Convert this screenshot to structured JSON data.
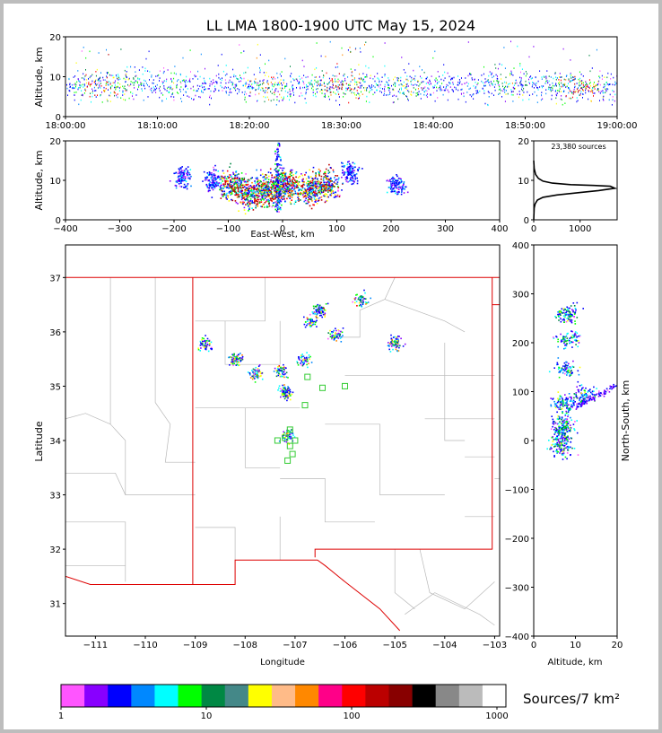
{
  "title": "LL LMA 1800-1900 UTC May 15, 2024",
  "time_panel": {
    "ylabel": "Altitude, km",
    "yticks": [
      "0",
      "10",
      "20"
    ],
    "xticks": [
      "18:00:00",
      "18:10:00",
      "18:20:00",
      "18:30:00",
      "18:40:00",
      "18:50:00",
      "19:00:00"
    ]
  },
  "ew_panel": {
    "ylabel": "Altitude, km",
    "xlabel": "East-West, km",
    "yticks": [
      "0",
      "10",
      "20"
    ],
    "xticks": [
      "−400",
      "−300",
      "−200",
      "−100",
      "0",
      "100",
      "200",
      "300",
      "400"
    ]
  },
  "hist_panel": {
    "annotation": "23,380 sources",
    "yticks": [
      "0",
      "10",
      "20"
    ],
    "xticks": [
      "0",
      "1000"
    ]
  },
  "map_panel": {
    "ylabel": "Latitude",
    "xlabel": "Longitude",
    "yticks": [
      "31",
      "32",
      "33",
      "34",
      "35",
      "36",
      "37"
    ],
    "xticks": [
      "−111",
      "−110",
      "−109",
      "−108",
      "−107",
      "−106",
      "−105",
      "−104",
      "−103"
    ]
  },
  "ns_panel": {
    "ylabel": "North-South, km",
    "xlabel": "Altitude, km",
    "yticks": [
      "400",
      "300",
      "200",
      "100",
      "0",
      "−100",
      "−200",
      "−300",
      "−400"
    ],
    "xticks": [
      "0",
      "10",
      "20"
    ]
  },
  "colorbar": {
    "label": "Sources/7 km²",
    "ticks": [
      "1",
      "10",
      "100",
      "1000"
    ],
    "colors": [
      "#ff55ff",
      "#8800ff",
      "#0000ff",
      "#0088ff",
      "#00ffff",
      "#00ff00",
      "#008844",
      "#448888",
      "#ffff00",
      "#ffbb88",
      "#ff8800",
      "#ff0088",
      "#ff0000",
      "#bb0000",
      "#880000",
      "#000000",
      "#888888",
      "#bbbbbb",
      "#ffffff"
    ]
  },
  "chart_data": [
    {
      "type": "scatter",
      "name": "time-height",
      "xlabel": "",
      "ylabel": "Altitude, km",
      "xlim": [
        "18:00:00",
        "19:00:00"
      ],
      "ylim": [
        0,
        20
      ],
      "altitude_range_km": [
        3,
        13
      ],
      "dense_altitude_km": [
        5,
        11
      ]
    },
    {
      "type": "scatter",
      "name": "east-west vs altitude",
      "xlabel": "East-West, km",
      "ylabel": "Altitude, km",
      "xlim": [
        -400,
        400
      ],
      "ylim": [
        0,
        20
      ],
      "clusters": [
        {
          "x": -185,
          "y": 11
        },
        {
          "x": -130,
          "y": 10
        },
        {
          "x": -95,
          "y": 9
        },
        {
          "x": -65,
          "y": 7
        },
        {
          "x": -35,
          "y": 8
        },
        {
          "x": -10,
          "y": 8
        },
        {
          "x": 10,
          "y": 9
        },
        {
          "x": 50,
          "y": 8
        },
        {
          "x": 80,
          "y": 9
        },
        {
          "x": 125,
          "y": 12
        },
        {
          "x": 210,
          "y": 9
        }
      ]
    },
    {
      "type": "line",
      "name": "altitude histogram",
      "annotation": "23,380 sources",
      "xlim": [
        0,
        1800
      ],
      "ylim": [
        0,
        20
      ],
      "points": [
        [
          0,
          0
        ],
        [
          10,
          3
        ],
        [
          30,
          4
        ],
        [
          80,
          5
        ],
        [
          200,
          5.7
        ],
        [
          500,
          6.3
        ],
        [
          1000,
          6.9
        ],
        [
          1400,
          7.4
        ],
        [
          1750,
          8
        ],
        [
          1650,
          8.5
        ],
        [
          1300,
          8.7
        ],
        [
          800,
          8.9
        ],
        [
          400,
          9.3
        ],
        [
          200,
          9.8
        ],
        [
          100,
          10.5
        ],
        [
          40,
          11.5
        ],
        [
          10,
          13
        ],
        [
          0,
          15
        ]
      ]
    },
    {
      "type": "scatter",
      "name": "plan view",
      "xlabel": "Longitude",
      "ylabel": "Latitude",
      "xlim": [
        -111.6,
        -102.9
      ],
      "ylim": [
        30.4,
        37.6
      ],
      "clusters": [
        {
          "lon": -108.8,
          "lat": 35.8
        },
        {
          "lon": -108.2,
          "lat": 35.5
        },
        {
          "lon": -107.8,
          "lat": 35.25
        },
        {
          "lon": -107.3,
          "lat": 35.3
        },
        {
          "lon": -107.2,
          "lat": 34.9
        },
        {
          "lon": -107.15,
          "lat": 34.1
        },
        {
          "lon": -106.85,
          "lat": 35.5
        },
        {
          "lon": -106.7,
          "lat": 36.2
        },
        {
          "lon": -106.5,
          "lat": 36.4
        },
        {
          "lon": -106.2,
          "lat": 35.95
        },
        {
          "lon": -105.7,
          "lat": 36.6
        },
        {
          "lon": -105.0,
          "lat": 35.8
        }
      ],
      "stations": [
        {
          "lon": -106.75,
          "lat": 35.17
        },
        {
          "lon": -106.45,
          "lat": 34.97
        },
        {
          "lon": -106.0,
          "lat": 35.0
        },
        {
          "lon": -106.8,
          "lat": 34.65
        },
        {
          "lon": -107.1,
          "lat": 34.2
        },
        {
          "lon": -107.2,
          "lat": 34.05
        },
        {
          "lon": -107.35,
          "lat": 34.0
        },
        {
          "lon": -107.0,
          "lat": 34.0
        },
        {
          "lon": -107.1,
          "lat": 33.9
        },
        {
          "lon": -107.05,
          "lat": 33.75
        },
        {
          "lon": -107.15,
          "lat": 33.63
        }
      ]
    },
    {
      "type": "scatter",
      "name": "north-south vs altitude",
      "xlabel": "Altitude, km",
      "ylabel": "North-South, km",
      "xlim": [
        0,
        20
      ],
      "ylim": [
        -400,
        400
      ],
      "clusters": [
        {
          "alt": 8,
          "ns": 260
        },
        {
          "alt": 8,
          "ns": 210
        },
        {
          "alt": 7.5,
          "ns": 150
        },
        {
          "alt": 12,
          "ns": 95
        },
        {
          "alt": 7,
          "ns": 75
        },
        {
          "alt": 7,
          "ns": 35
        },
        {
          "alt": 6.5,
          "ns": 10
        },
        {
          "alt": 6.5,
          "ns": -15
        }
      ]
    }
  ]
}
